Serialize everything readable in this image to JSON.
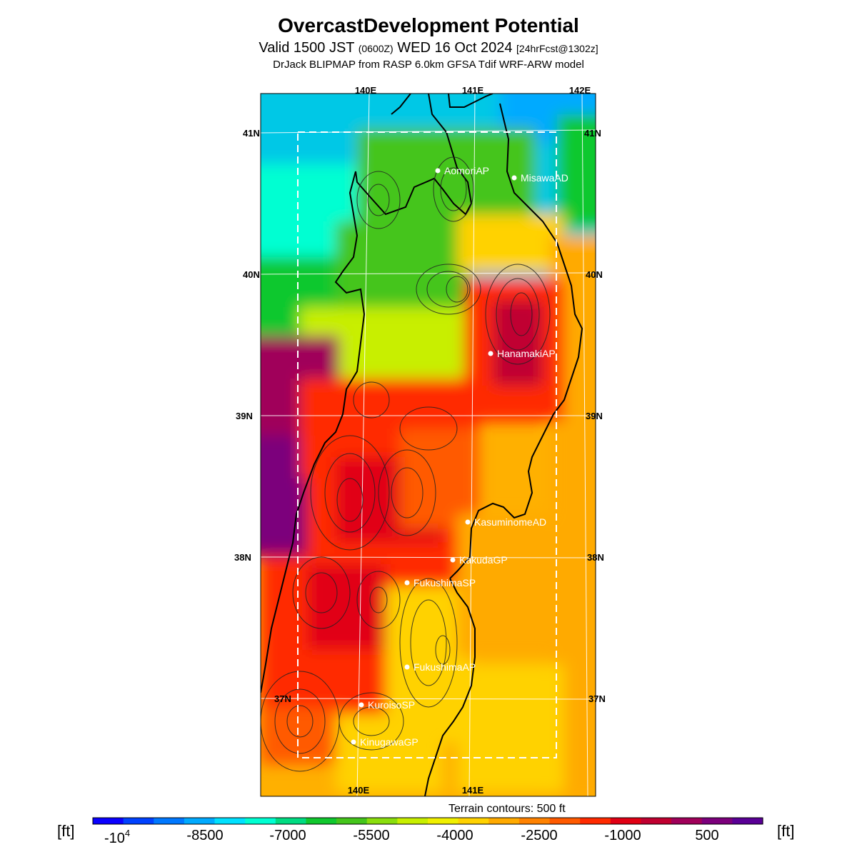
{
  "header": {
    "title": "OvercastDevelopment Potential",
    "subtitle_a": "Valid 1500 JST",
    "subtitle_zone": "(0600Z)",
    "subtitle_b": "WED 16 Oct 2024",
    "subtitle_fcst": "[24hrFcst@1302z]",
    "model_line": "DrJack BLIPMAP from RASP 6.0km GFSA Tdif WRF-ARW model"
  },
  "map": {
    "lon_labels_top": [
      "140E",
      "141E",
      "142E"
    ],
    "lon_labels_bottom": [
      "140E",
      "141E"
    ],
    "lat_labels_left": [
      "41N",
      "40N",
      "39N",
      "38N",
      "37N"
    ],
    "lat_labels_right": [
      "41N",
      "40N",
      "39N",
      "38N",
      "37N"
    ],
    "stations": [
      {
        "name": "AomoriAP"
      },
      {
        "name": "MisawaAD"
      },
      {
        "name": "HanamakiAP"
      },
      {
        "name": "KasuminomeAD"
      },
      {
        "name": "KakudaGP"
      },
      {
        "name": "FukushimaSP"
      },
      {
        "name": "FukushimaAP"
      },
      {
        "name": "KuroisoSP"
      },
      {
        "name": "KinugawaGP"
      }
    ],
    "terrain_note": "Terrain contours: 500 ft"
  },
  "colorbar": {
    "unit_left": "[ft]",
    "unit_right": "[ft]",
    "tick_first": "-10",
    "tick_first_exp": "4",
    "ticks": [
      "-8500",
      "-7000",
      "-5500",
      "-4000",
      "-2500",
      "-1000",
      "500"
    ],
    "colors": [
      "#0a00ff",
      "#0041ff",
      "#0078ff",
      "#00aaff",
      "#00e1ff",
      "#00ffd2",
      "#00dc82",
      "#10c82e",
      "#44c51b",
      "#8ade0d",
      "#c8ef00",
      "#f0f000",
      "#ffd200",
      "#ffaa00",
      "#ff8200",
      "#ff5a00",
      "#ff2a00",
      "#e10014",
      "#c00030",
      "#a0005a",
      "#7c007c",
      "#5a0096"
    ]
  }
}
